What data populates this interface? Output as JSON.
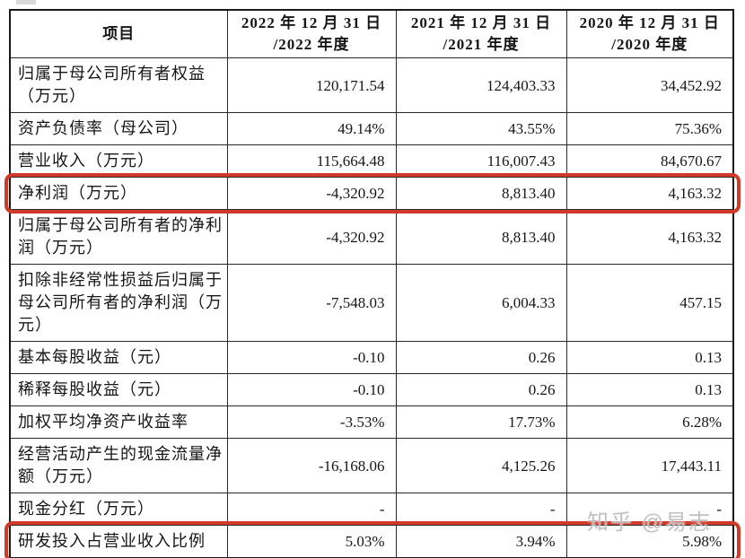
{
  "table": {
    "header": [
      {
        "label": "项目"
      },
      {
        "line1": "2022 年 12 月 31 日",
        "line2": "/2022 年度"
      },
      {
        "line1": "2021 年 12 月 31 日",
        "line2": "/2021 年度"
      },
      {
        "line1": "2020 年 12 月 31 日",
        "line2": "/2020 年度"
      }
    ],
    "rows": [
      {
        "label": "归属于母公司所有者权益（万元）",
        "values": [
          "120,171.54",
          "124,403.33",
          "34,452.92"
        ],
        "highlight": false
      },
      {
        "label": "资产负债率（母公司）",
        "values": [
          "49.14%",
          "43.55%",
          "75.36%"
        ],
        "highlight": false
      },
      {
        "label": "营业收入（万元）",
        "values": [
          "115,664.48",
          "116,007.43",
          "84,670.67"
        ],
        "highlight": false
      },
      {
        "label": "净利润（万元）",
        "values": [
          "-4,320.92",
          "8,813.40",
          "4,163.32"
        ],
        "highlight": true
      },
      {
        "label": "归属于母公司所有者的净利润（万元）",
        "values": [
          "-4,320.92",
          "8,813.40",
          "4,163.32"
        ],
        "highlight": false
      },
      {
        "label": "扣除非经常性损益后归属于母公司所有者的净利润（万元）",
        "values": [
          "-7,548.03",
          "6,004.33",
          "457.15"
        ],
        "highlight": false
      },
      {
        "label": "基本每股收益（元）",
        "values": [
          "-0.10",
          "0.26",
          "0.13"
        ],
        "highlight": false
      },
      {
        "label": "稀释每股收益（元）",
        "values": [
          "-0.10",
          "0.26",
          "0.13"
        ],
        "highlight": false
      },
      {
        "label": "加权平均净资产收益率",
        "values": [
          "-3.53%",
          "17.73%",
          "6.28%"
        ],
        "highlight": false
      },
      {
        "label": "经营活动产生的现金流量净额（万元）",
        "values": [
          "-16,168.06",
          "4,125.26",
          "17,443.11"
        ],
        "highlight": false
      },
      {
        "label": "现金分红（万元）",
        "values": [
          "-",
          "-",
          "-"
        ],
        "highlight": false
      },
      {
        "label": "研发投入占营业收入比例",
        "values": [
          "5.03%",
          "3.94%",
          "5.98%"
        ],
        "highlight": true
      }
    ]
  },
  "watermark": {
    "text": "知乎 @易志"
  },
  "colors": {
    "highlight_border": "#d13a2a",
    "table_border": "#1a1a1a",
    "watermark_gray": "#b9b9b9"
  }
}
